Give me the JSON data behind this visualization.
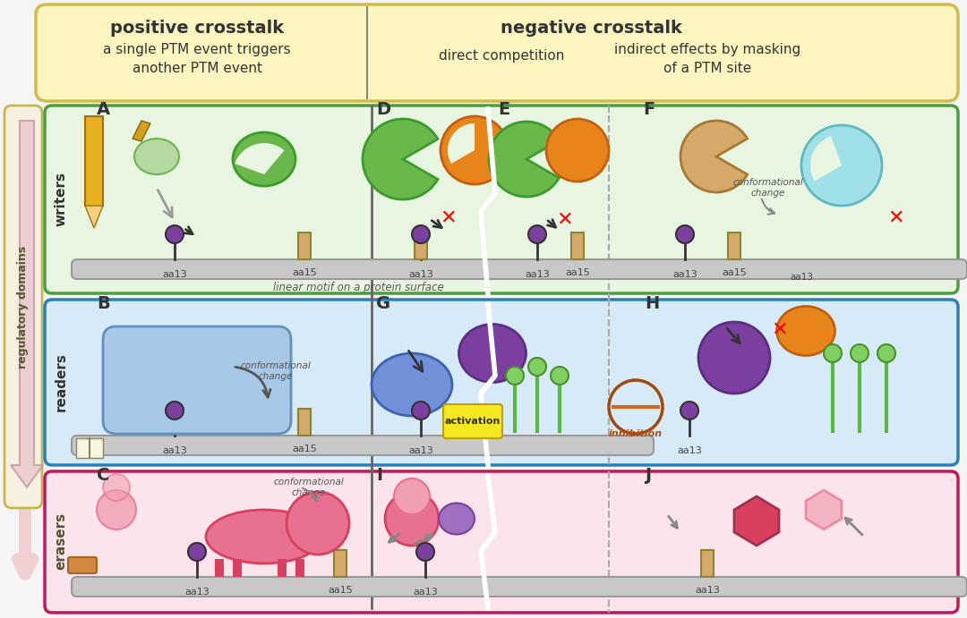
{
  "bg_color": "#f5f5f5",
  "top_box_color": "#fdf5c0",
  "top_box_border": "#d4b84a",
  "writers_box_color": "#e8f5e0",
  "writers_box_border": "#4a9e3f",
  "readers_box_color": "#d6eaf8",
  "readers_box_border": "#2980b9",
  "erasers_box_color": "#fce4ec",
  "erasers_box_border": "#c2185b",
  "left_arrow_color": "#f0d0d0",
  "reg_domains_color": "#f5f0e0",
  "reg_domains_border": "#c8b84a",
  "title_positive": "positive crosstalk",
  "title_negative": "negative crosstalk",
  "subtitle_positive": "a single PTM event triggers\nanother PTM event",
  "subtitle_direct": "direct competition",
  "subtitle_indirect": "indirect effects by masking\nof a PTM site",
  "label_writers": "writers",
  "label_readers": "readers",
  "label_erasers": "erasers",
  "label_reg_domains": "regulatory domains",
  "label_A": "A",
  "label_B": "B",
  "label_C": "C",
  "label_D": "D",
  "label_E": "E",
  "label_F": "F",
  "label_G": "G",
  "label_H": "H",
  "label_I": "I",
  "label_J": "J",
  "label_aa13": "aa13",
  "label_aa15": "aa15",
  "label_linear_motif": "linear motif on a protein surface",
  "label_conf_change_B": "conformational\nchange",
  "label_conf_change_C": "conformational\nchange",
  "label_conf_change_F": "conformational\nchange",
  "label_activation": "activation",
  "label_inhibition": "inhibition",
  "green_light": "#b5d9a0",
  "green_dark": "#3a9c2a",
  "green_mid": "#6ab84a",
  "orange_color": "#e8851a",
  "purple_color": "#7b3fa0",
  "tan_color": "#d4a96a",
  "blue_light": "#a0c8e8",
  "blue_mid": "#4a8ab8",
  "pink_light": "#f0a0b0",
  "pink_dark": "#d94060",
  "pink_mid": "#e87090",
  "gray_surface": "#b8b8b8",
  "surface_color": "#c8c8c8",
  "yellow_burst": "#f5e820",
  "cyan_light": "#a0e0e8"
}
